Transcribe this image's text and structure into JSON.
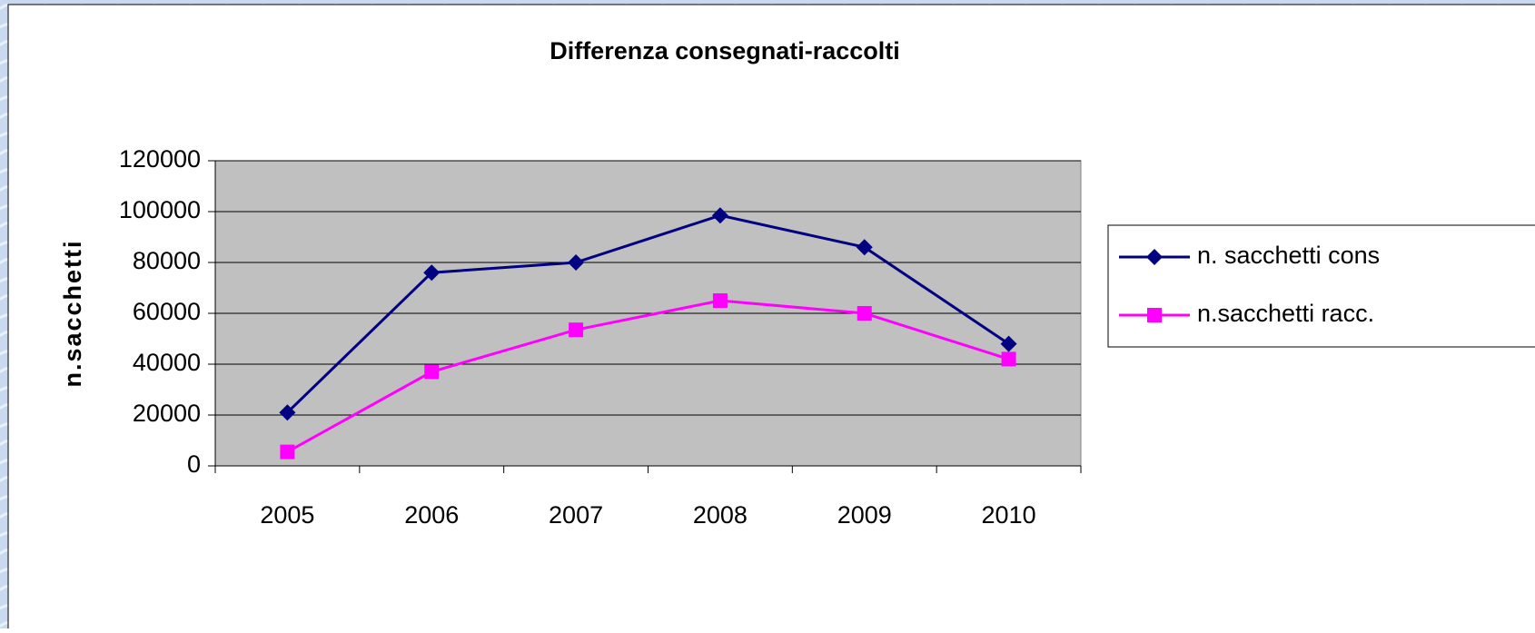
{
  "chart_data": {
    "type": "line",
    "title": "Differenza consegnati-raccolti",
    "y_label": "n.sacchetti",
    "categories": [
      "2005",
      "2006",
      "2007",
      "2008",
      "2009",
      "2010"
    ],
    "series": [
      {
        "name": "n. sacchetti cons",
        "color": "#000080",
        "marker": "diamond",
        "values": [
          21000,
          76000,
          80000,
          98500,
          86000,
          48000
        ]
      },
      {
        "name": "n.sacchetti racc.",
        "color": "#ff00ff",
        "marker": "square",
        "values": [
          5500,
          37000,
          53500,
          65000,
          60000,
          42000
        ]
      }
    ],
    "ylim": [
      0,
      120000
    ],
    "yticks": [
      0,
      20000,
      40000,
      60000,
      80000,
      100000,
      120000
    ],
    "grid": true,
    "legend": "right"
  }
}
